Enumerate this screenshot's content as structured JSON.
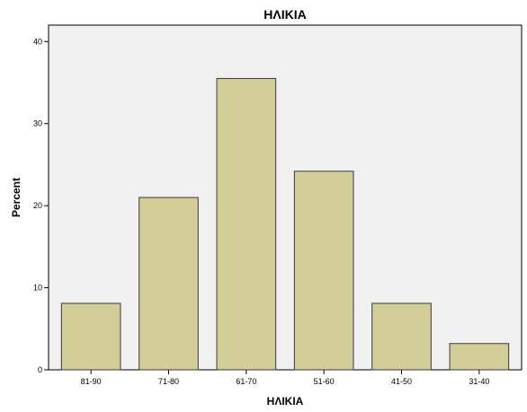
{
  "chart_data": {
    "type": "bar",
    "title": "ΗΛΙΚΙΑ",
    "xlabel": "ΗΛΙΚΙΑ",
    "ylabel": "Percent",
    "categories": [
      "81-90",
      "71-80",
      "61-70",
      "51-60",
      "41-50",
      "31-40"
    ],
    "values": [
      8.1,
      21.0,
      35.5,
      24.2,
      8.1,
      3.2
    ],
    "ylim": [
      0,
      42
    ],
    "yticks": [
      0,
      10,
      20,
      30,
      40
    ],
    "grid": false,
    "colors": {
      "bar_fill": "#D3CE97",
      "bar_stroke": "#3a3a3a",
      "plot_background": "#F0F0F0",
      "frame": "#000000"
    }
  }
}
